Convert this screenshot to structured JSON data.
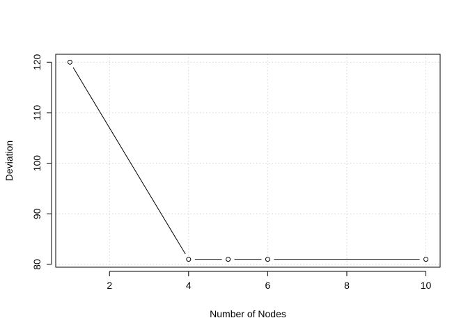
{
  "chart_data": {
    "type": "line",
    "style": "points-connected-by-segments",
    "title": "",
    "xlabel": "Number of Nodes",
    "ylabel": "Deviation",
    "x": [
      1,
      4,
      5,
      6,
      10
    ],
    "y": [
      120,
      81,
      81,
      81,
      81
    ],
    "xticks": [
      2,
      4,
      6,
      8,
      10
    ],
    "yticks": [
      80,
      90,
      100,
      110,
      120
    ],
    "xlim": [
      0.64,
      10.36
    ],
    "ylim": [
      79.44,
      121.56
    ],
    "grid": true,
    "grid_color": "#d3d3d3",
    "point_color": "#000000",
    "line_color": "#000000",
    "legend": "none"
  }
}
